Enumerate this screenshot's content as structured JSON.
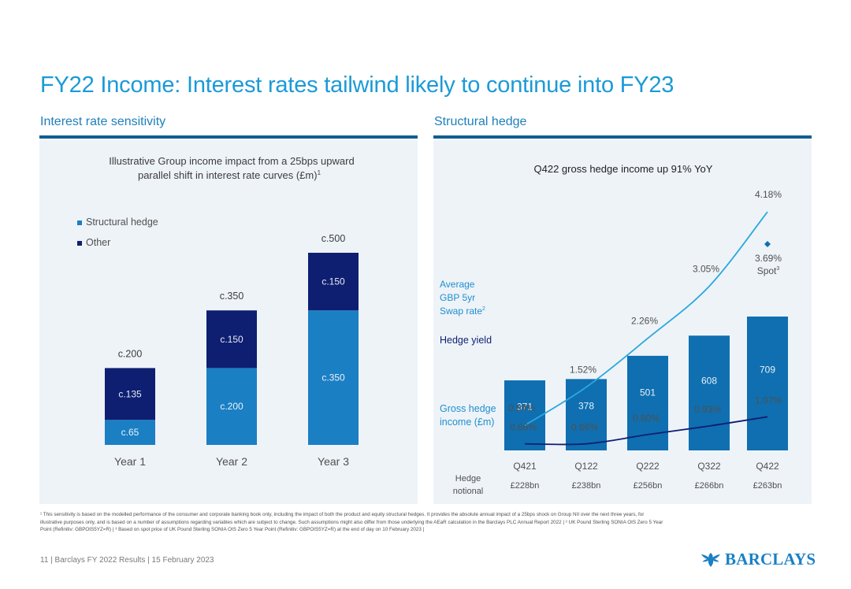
{
  "title": "FY22 Income: Interest rates tailwind likely to continue into FY23",
  "left": {
    "section_label": "Interest rate sensitivity",
    "chart_title_line1": "Illustrative Group income impact from a 25bps upward",
    "chart_title_line2": "parallel shift in interest rate curves (£m)",
    "chart_title_sup": "1"
  },
  "right": {
    "section_label": "Structural hedge",
    "chart_title": "Q422 gross hedge income up 91% YoY"
  },
  "chart_data": [
    {
      "type": "bar",
      "stacked": true,
      "title": "Illustrative Group income impact from a 25bps upward parallel shift in interest rate curves (£m)",
      "categories": [
        "Year 1",
        "Year 2",
        "Year 3"
      ],
      "series": [
        {
          "name": "Structural hedge",
          "color": "#1b7fc4",
          "values": [
            65,
            200,
            350
          ],
          "labels": [
            "c.65",
            "c.200",
            "c.350"
          ]
        },
        {
          "name": "Other",
          "color": "#0e1f72",
          "values": [
            135,
            150,
            150
          ],
          "labels": [
            "c.135",
            "c.150",
            "c.150"
          ]
        }
      ],
      "totals": [
        200,
        350,
        500
      ],
      "total_labels": [
        "c.200",
        "c.350",
        "c.500"
      ],
      "ylim": [
        0,
        500
      ],
      "legend": "top-left",
      "grid": false
    },
    {
      "type": "bar+line",
      "title": "Q422 gross hedge income up 91% YoY",
      "categories": [
        "Q421",
        "Q122",
        "Q222",
        "Q322",
        "Q422"
      ],
      "bars": {
        "name": "Gross hedge income (£m)",
        "label_lines": [
          "Gross hedge",
          "income (£m)"
        ],
        "values": [
          371,
          378,
          501,
          608,
          709
        ],
        "labels": [
          "371",
          "378",
          "501",
          "608",
          "709"
        ],
        "color": "#0f6fb0",
        "ylim": [
          0,
          709
        ]
      },
      "lines": [
        {
          "name": "Average GBP 5yr Swap rate",
          "label_lines": [
            "Average",
            "GBP 5yr",
            "Swap rate"
          ],
          "label_sup": "2",
          "values": [
            0.94,
            1.52,
            2.26,
            3.05,
            4.18
          ],
          "labels": [
            "0.94%",
            "1.52%",
            "2.26%",
            "3.05%",
            "4.18%"
          ],
          "color": "#2aa8de"
        },
        {
          "name": "Hedge yield",
          "values": [
            0.66,
            0.66,
            0.8,
            0.93,
            1.07
          ],
          "labels": [
            "0.66%",
            "0.66%",
            "0.80%",
            "0.93%",
            "1.07%"
          ],
          "color": "#0e1f72"
        }
      ],
      "line_ylim": [
        0.5,
        4.3
      ],
      "spot": {
        "value": 3.69,
        "label": "3.69%",
        "text": "Spot",
        "sup": "3",
        "color": "#0f6fb0"
      },
      "notional": {
        "label_lines": [
          "Hedge",
          "notional"
        ],
        "values": [
          "£228bn",
          "£238bn",
          "£256bn",
          "£266bn",
          "£263bn"
        ]
      }
    }
  ],
  "footnote": {
    "line1": "¹ This sensitivity is based on the modelled performance of the consumer and corporate banking book only, including the impact of both the product and equity structural hedges. It provides the absolute annual impact of a 25bps shock on Group NII over the next three years, for",
    "line2": "illustrative purposes only, and is based on a number of assumptions regarding variables which are subject to change. Such assumptions might also differ from those underlying the AEaR calculation in the Barclays PLC Annual Report 2022 | ² UK Pound Sterling SONIA OIS Zero 5 Year",
    "line3": "Point (Refinitiv: GBPOIS5YZ=R) | ³ Based on spot price of UK Pound Sterling SONIA OIS Zero 5 Year Point (Refinitiv: GBPOIS5YZ=R) at the end of day on 10 February 2023 |"
  },
  "footer": {
    "text": "11 | Barclays FY 2022 Results | 15 February 2023"
  },
  "logo": {
    "text": "BARCLAYS",
    "icon": "eagle-icon"
  }
}
